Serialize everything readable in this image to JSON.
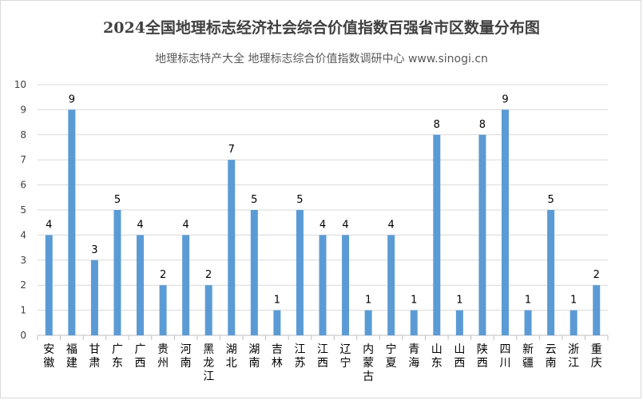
{
  "chart_data": {
    "type": "bar",
    "title": "2024全国地理标志经济社会综合价值指数百强省市区数量分布图",
    "subtitle": "地理标志特产大全 地理标志综合价值指数调研中心 www.sinogi.cn",
    "categories": [
      "安徽",
      "福建",
      "甘肃",
      "广东",
      "广西",
      "贵州",
      "河南",
      "黑龙江",
      "湖北",
      "湖南",
      "吉林",
      "江苏",
      "江西",
      "辽宁",
      "内蒙古",
      "宁夏",
      "青海",
      "山东",
      "山西",
      "陕西",
      "四川",
      "新疆",
      "云南",
      "浙江",
      "重庆"
    ],
    "values": [
      4,
      9,
      3,
      5,
      4,
      2,
      4,
      2,
      7,
      5,
      1,
      5,
      4,
      4,
      1,
      4,
      1,
      8,
      1,
      8,
      9,
      1,
      5,
      1,
      2
    ],
    "xlabel": "",
    "ylabel": "",
    "ylim": [
      0,
      10
    ],
    "yticks": [
      0,
      1,
      2,
      3,
      4,
      5,
      6,
      7,
      8,
      9,
      10
    ],
    "grid": true,
    "bar_color": "#5b9bd5",
    "grid_color": "#d9d9d9"
  }
}
